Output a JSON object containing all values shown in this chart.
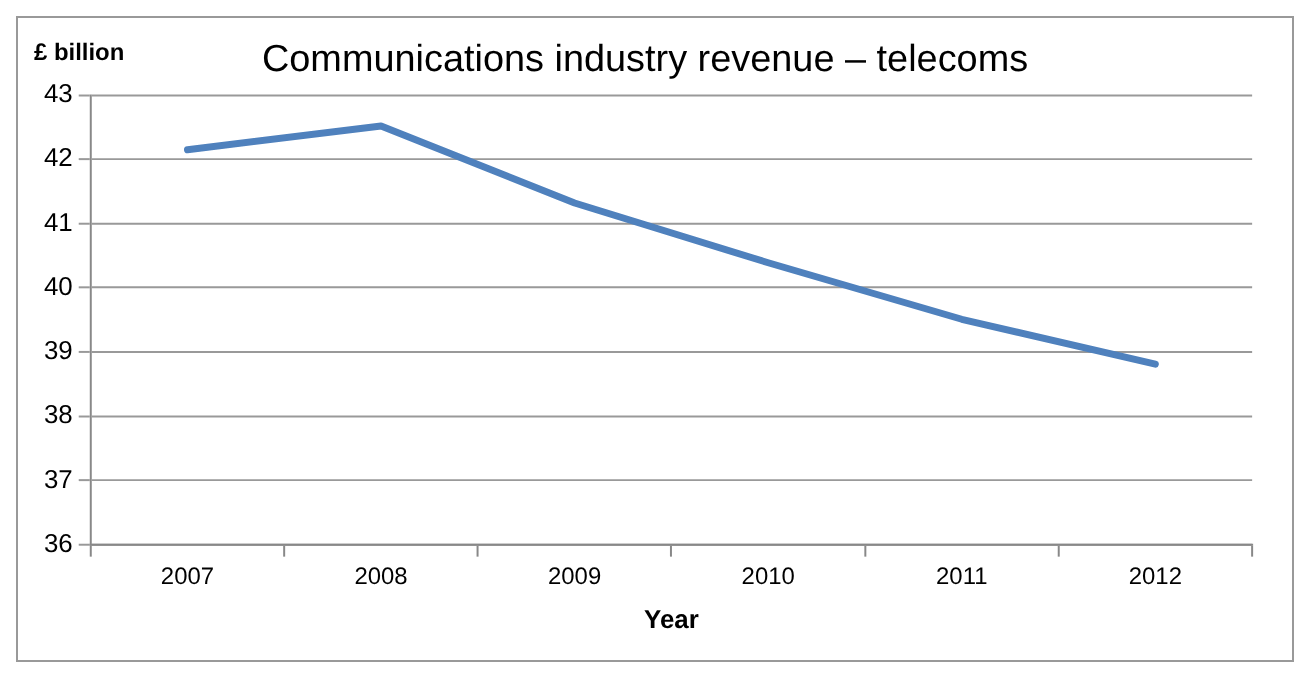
{
  "chart_data": {
    "type": "line",
    "title": "Communications industry revenue – telecoms",
    "ylabel": "£ billion",
    "xlabel": "Year",
    "categories": [
      "2007",
      "2008",
      "2009",
      "2010",
      "2011",
      "2012"
    ],
    "series": [
      {
        "color": "#4f81bd",
        "values": [
          42.15,
          42.52,
          41.32,
          40.39,
          39.51,
          38.81
        ]
      }
    ],
    "ylim": [
      36,
      43
    ],
    "yticks": [
      36,
      37,
      38,
      39,
      40,
      41,
      42,
      43
    ],
    "grid": "y",
    "legend": false,
    "marker": "none",
    "line_style": "solid"
  }
}
